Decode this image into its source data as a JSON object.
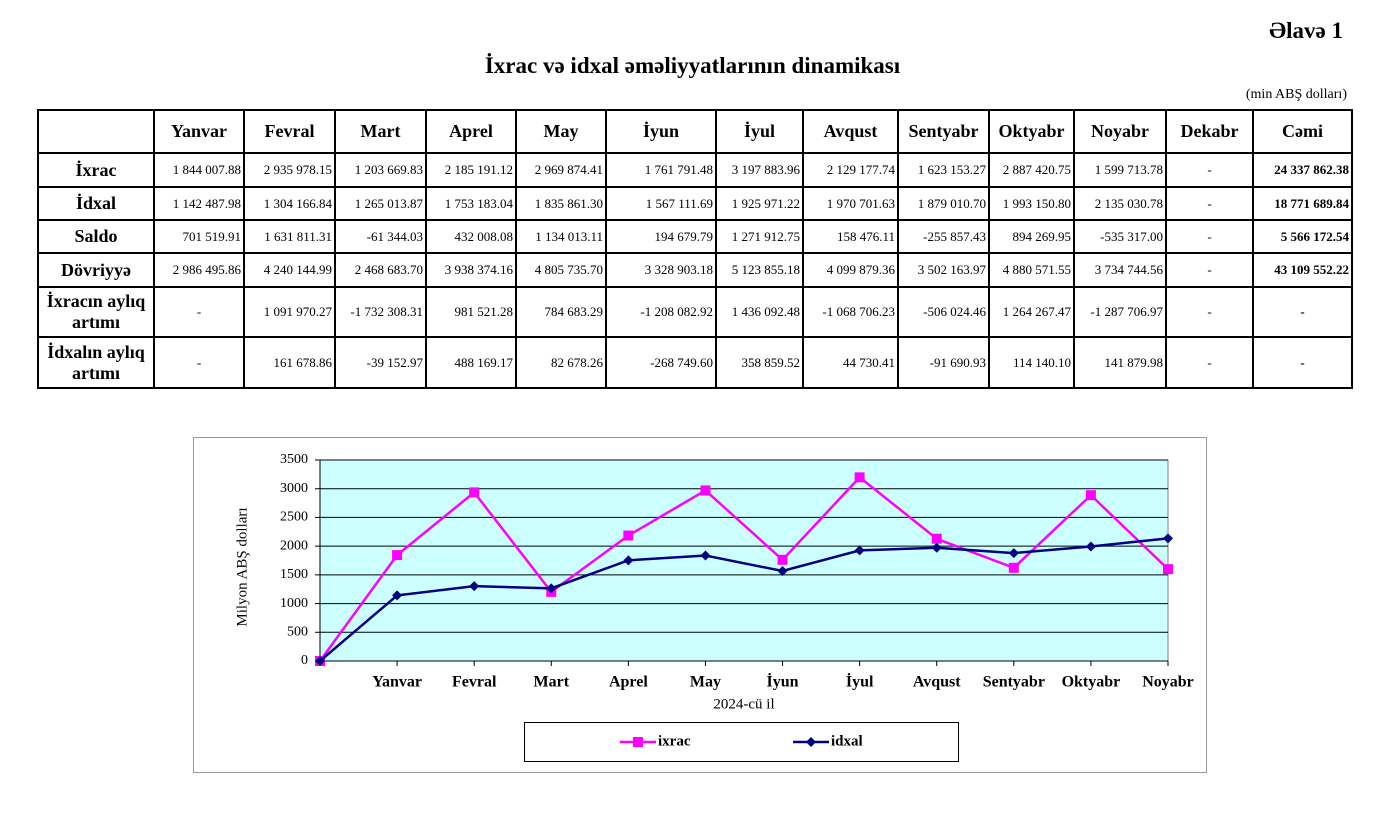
{
  "header": {
    "appendix": "Əlavə 1",
    "title": "İxrac və idxal əməliyyatlarının dinamikası",
    "unit": "(min ABŞ dolları)"
  },
  "table": {
    "columns": [
      "Yanvar",
      "Fevral",
      "Mart",
      "Aprel",
      "May",
      "İyun",
      "İyul",
      "Avqust",
      "Sentyabr",
      "Oktyabr",
      "Noyabr",
      "Dekabr",
      "Cəmi"
    ],
    "rows": [
      {
        "label": "İxrac",
        "cells": [
          "1 844 007.88",
          "2 935 978.15",
          "1 203 669.83",
          "2 185 191.12",
          "2 969 874.41",
          "1 761 791.48",
          "3 197 883.96",
          "2 129 177.74",
          "1 623 153.27",
          "2 887 420.75",
          "1 599 713.78",
          "-",
          "24 337 862.38"
        ]
      },
      {
        "label": "İdxal",
        "cells": [
          "1 142 487.98",
          "1 304 166.84",
          "1 265 013.87",
          "1 753 183.04",
          "1 835 861.30",
          "1 567 111.69",
          "1 925 971.22",
          "1 970 701.63",
          "1 879 010.70",
          "1 993 150.80",
          "2 135 030.78",
          "-",
          "18 771 689.84"
        ]
      },
      {
        "label": "Saldo",
        "cells": [
          "701 519.91",
          "1 631 811.31",
          "-61 344.03",
          "432 008.08",
          "1 134 013.11",
          "194 679.79",
          "1 271 912.75",
          "158 476.11",
          "-255 857.43",
          "894 269.95",
          "-535 317.00",
          "-",
          "5 566 172.54"
        ]
      },
      {
        "label": "Dövriyyə",
        "cells": [
          "2 986 495.86",
          "4 240 144.99",
          "2 468 683.70",
          "3 938 374.16",
          "4 805 735.70",
          "3 328 903.18",
          "5 123 855.18",
          "4 099 879.36",
          "3 502 163.97",
          "4 880 571.55",
          "3 734 744.56",
          "-",
          "43 109 552.22"
        ]
      },
      {
        "label": "İxracın aylıq artımı",
        "cells": [
          "-",
          "1 091 970.27",
          "-1 732 308.31",
          "981 521.28",
          "784 683.29",
          "-1 208 082.92",
          "1 436 092.48",
          "-1 068 706.23",
          "-506 024.46",
          "1 264 267.47",
          "-1 287 706.97",
          "-",
          "-"
        ]
      },
      {
        "label": "İdxalın aylıq artımı",
        "cells": [
          "-",
          "161 678.86",
          "-39 152.97",
          "488 169.17",
          "82 678.26",
          "-268 749.60",
          "358 859.52",
          "44 730.41",
          "-91 690.93",
          "114 140.10",
          "141 879.98",
          "-",
          "-"
        ]
      }
    ]
  },
  "chart_data": {
    "type": "line",
    "ylabel": "Milyon ABŞ dolları",
    "xlabel": "2024-cü il",
    "categories": [
      null,
      "Yanvar",
      "Fevral",
      "Mart",
      "Aprel",
      "May",
      "İyun",
      "İyul",
      "Avqust",
      "Sentyabr",
      "Oktyabr",
      "Noyabr"
    ],
    "series": [
      {
        "name": "ixrac",
        "color": "#ff00ff",
        "marker": "square",
        "values": [
          0,
          1844,
          2936,
          1204,
          2185,
          2970,
          1762,
          3198,
          2129,
          1623,
          2887,
          1600
        ]
      },
      {
        "name": "idxal",
        "color": "#000080",
        "marker": "diamond",
        "values": [
          0,
          1142,
          1304,
          1265,
          1753,
          1836,
          1567,
          1926,
          1971,
          1879,
          1993,
          2135
        ]
      }
    ],
    "ylim": [
      0,
      3500
    ],
    "yticks": [
      0,
      500,
      1000,
      1500,
      2000,
      2500,
      3000,
      3500
    ],
    "grid": true,
    "background": "#ccffff"
  }
}
